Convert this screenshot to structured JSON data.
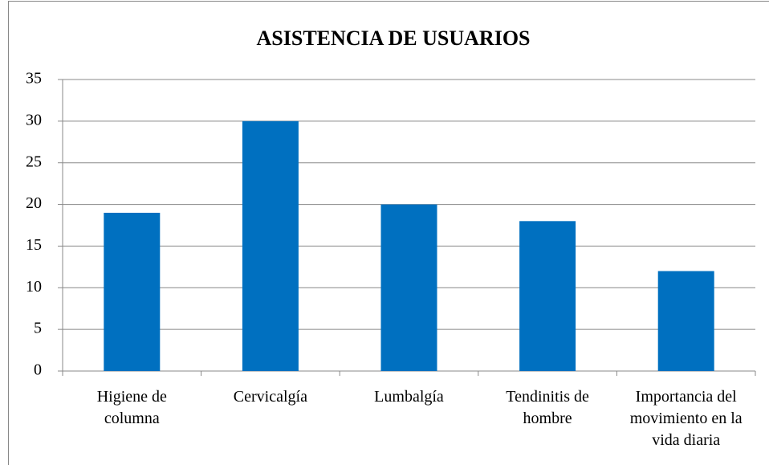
{
  "chart_data": {
    "type": "bar",
    "title": "ASISTENCIA DE USUARIOS",
    "categories": [
      "Higiene de columna",
      "Cervicalgía",
      "Lumbalgía",
      "Tendinitis de hombre",
      "Importancia del movimiento en la vida diaria"
    ],
    "values": [
      19,
      30,
      20,
      18,
      12
    ],
    "color": "#0070c0",
    "ylim": [
      0,
      35
    ],
    "yticks": [
      0,
      5,
      10,
      15,
      20,
      25,
      30,
      35
    ],
    "grid": true
  }
}
